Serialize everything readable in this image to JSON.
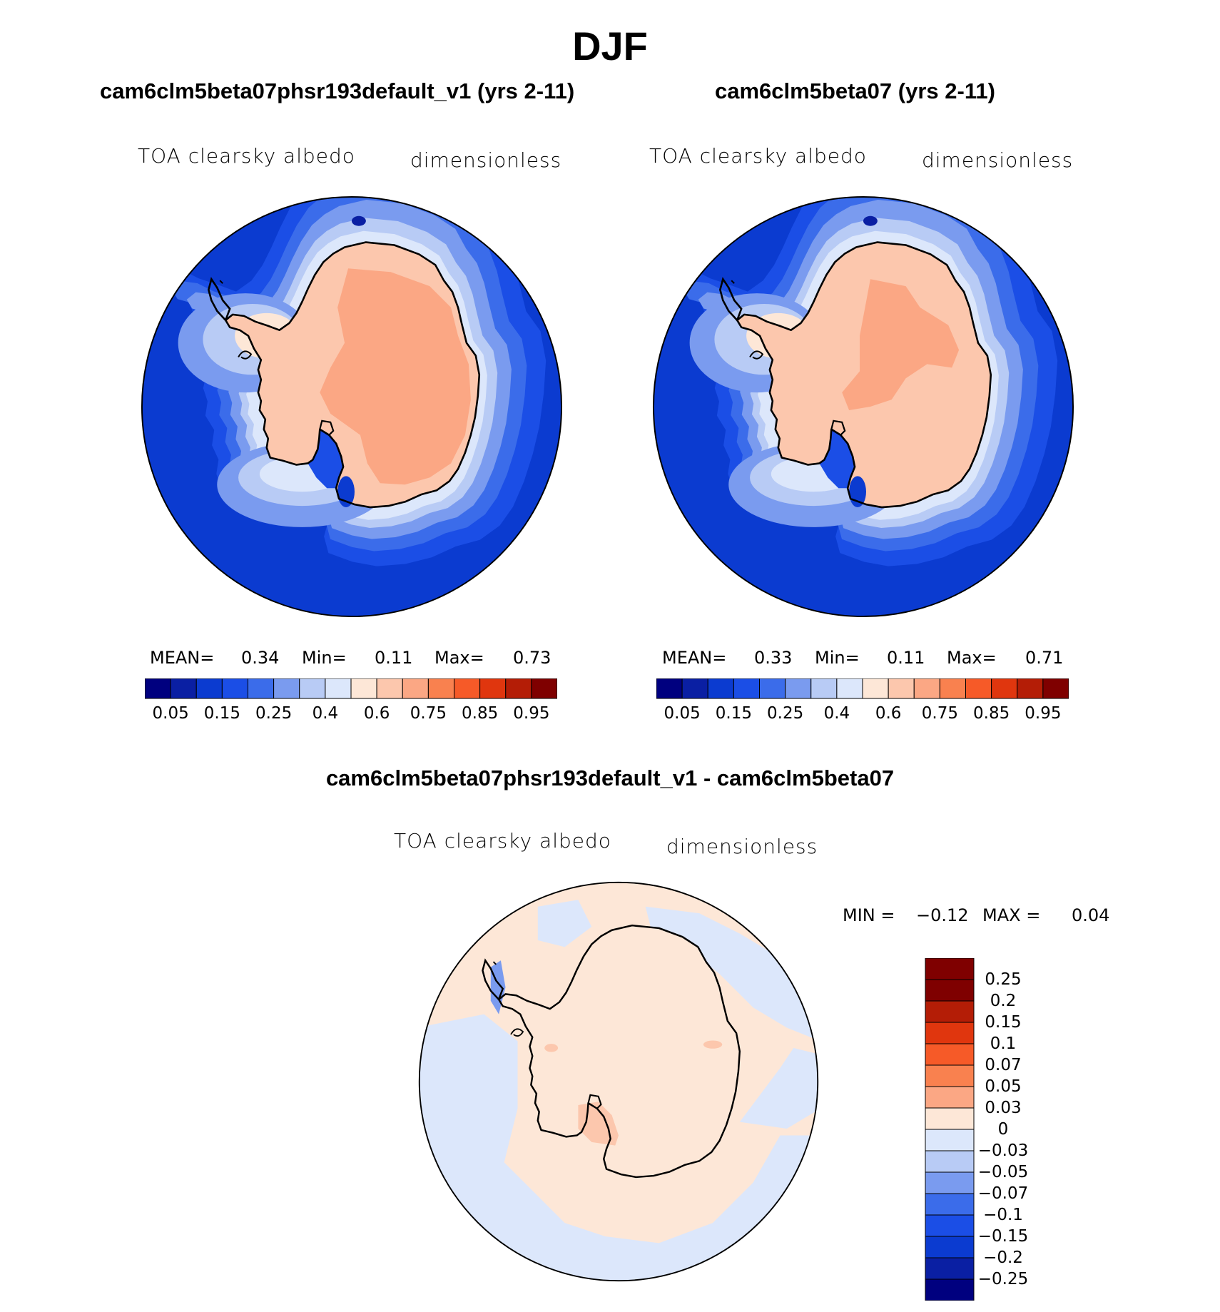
{
  "figure": {
    "season": "DJF"
  },
  "panels": [
    {
      "id": "case1",
      "title": "cam6clm5beta07phsr193default_v1 (yrs 2-11)",
      "variable": "TOA clearsky albedo",
      "units": "dimensionless",
      "stats": {
        "mean_label": "MEAN=",
        "mean": "0.34",
        "min_label": "Min=",
        "min": "0.11",
        "max_label": "Max=",
        "max": "0.73"
      },
      "variant": "case1"
    },
    {
      "id": "case2",
      "title": "cam6clm5beta07 (yrs 2-11)",
      "variable": "TOA clearsky albedo",
      "units": "dimensionless",
      "stats": {
        "mean_label": "MEAN=",
        "mean": "0.33",
        "min_label": "Min=",
        "min": "0.11",
        "max_label": "Max=",
        "max": "0.71"
      },
      "variant": "case2"
    },
    {
      "id": "diff",
      "title": "cam6clm5beta07phsr193default_v1 - cam6clm5beta07",
      "variable": "TOA clearsky albedo",
      "units": "dimensionless",
      "stats": {
        "min_label": "MIN =",
        "min": "−0.12",
        "max_label": "MAX =",
        "max": "0.04"
      }
    }
  ],
  "colorbar_main": {
    "colors": [
      "#00007f",
      "#0a1fa3",
      "#0b3bd0",
      "#1b4ee6",
      "#3b6cea",
      "#7a9bef",
      "#b8cbf5",
      "#dce7fb",
      "#fde7d7",
      "#fcc7ad",
      "#fba784",
      "#f9814f",
      "#f65a28",
      "#e0360e",
      "#b41d06",
      "#7f0000"
    ],
    "tick_labels": [
      "0.05",
      "0.15",
      "0.25",
      "0.4",
      "0.6",
      "0.75",
      "0.85",
      "0.95"
    ]
  },
  "colorbar_diff": {
    "colors": [
      "#7f0000",
      "#b41d06",
      "#e0360e",
      "#f65a28",
      "#f9814f",
      "#fba784",
      "#fde7d7",
      "#dce7fb",
      "#b8cbf5",
      "#7a9bef",
      "#3b6cea",
      "#1b4ee6",
      "#0b3bd0",
      "#0a1fa3",
      "#00007f"
    ],
    "tick_labels": [
      "0.25",
      "0.2",
      "0.15",
      "0.1",
      "0.07",
      "0.05",
      "0.03",
      "0",
      "−0.03",
      "−0.05",
      "−0.07",
      "−0.1",
      "−0.15",
      "−0.2",
      "−0.25"
    ]
  }
}
